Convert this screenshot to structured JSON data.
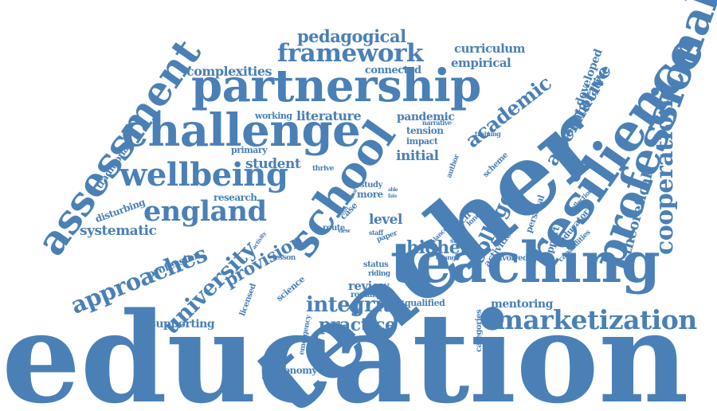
{
  "style": {
    "word_color": "#4a80b6",
    "background": "#ffffff"
  },
  "words": [
    "education",
    "teacher",
    "teaching",
    "resilience",
    "professional",
    "partnership",
    "challenge",
    "school",
    "assessment",
    "wellbeing",
    "framework",
    "marketization",
    "cooperation",
    "england",
    "approaches",
    "university",
    "pedagogical",
    "alternative",
    "academic",
    "integrity",
    "practice",
    "college",
    "provision",
    "higher",
    "complexities",
    "systematic",
    "theoretical",
    "collaborative",
    "curriculum",
    "empirical",
    "developed",
    "literature",
    "pandemic",
    "student",
    "initial",
    "connected",
    "level",
    "review",
    "mentoring",
    "supporting",
    "taxonomy",
    "profession",
    "traditional",
    "disturbing",
    "research",
    "working",
    "primary",
    "tension",
    "impact",
    "narrative",
    "support",
    "personal",
    "educator",
    "capabilities",
    "reflection",
    "scheme",
    "training",
    "author",
    "thrive",
    "study",
    "case",
    "more",
    "route",
    "staff",
    "paper",
    "teach",
    "london",
    "activities",
    "balance",
    "studies",
    "change",
    "involved",
    "licensed",
    "lesson",
    "status",
    "riding",
    "roman",
    "science",
    "emergency",
    "qualified",
    "categories",
    "math",
    "view",
    "activity",
    "signal",
    "able",
    "fate"
  ]
}
